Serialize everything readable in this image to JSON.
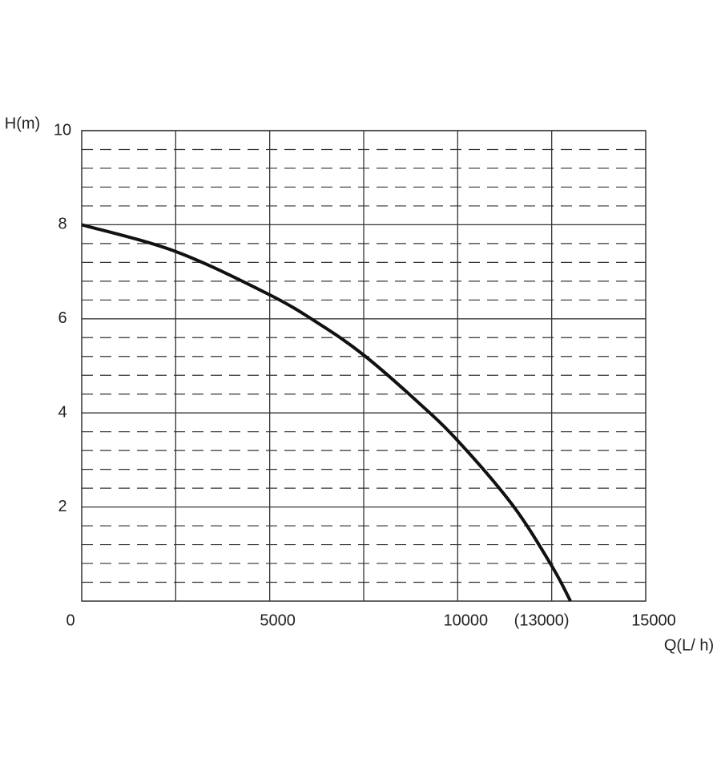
{
  "chart_data": {
    "type": "line",
    "y_label": "H(m)",
    "x_label": "Q(L/ h)",
    "x": [
      0,
      2500,
      5000,
      6340,
      7500,
      8900,
      10000,
      11460,
      12500,
      13000
    ],
    "series": [
      {
        "color": "#111111",
        "values": [
          8,
          7.43,
          6.51,
          5.88,
          5.23,
          4.26,
          3.41,
          2.04,
          0.75,
          0
        ]
      }
    ],
    "xlim": [
      0,
      15000
    ],
    "xticks": [
      0,
      5000,
      10000,
      {
        "value": 13000,
        "label": "(13000)"
      },
      15000
    ],
    "ylim": [
      0,
      10
    ],
    "yticks": [
      2,
      4,
      6,
      8,
      10
    ],
    "x_grid_step": 2500,
    "y_grid_step": 2,
    "y_minor_divisions": 5,
    "grid": true
  }
}
